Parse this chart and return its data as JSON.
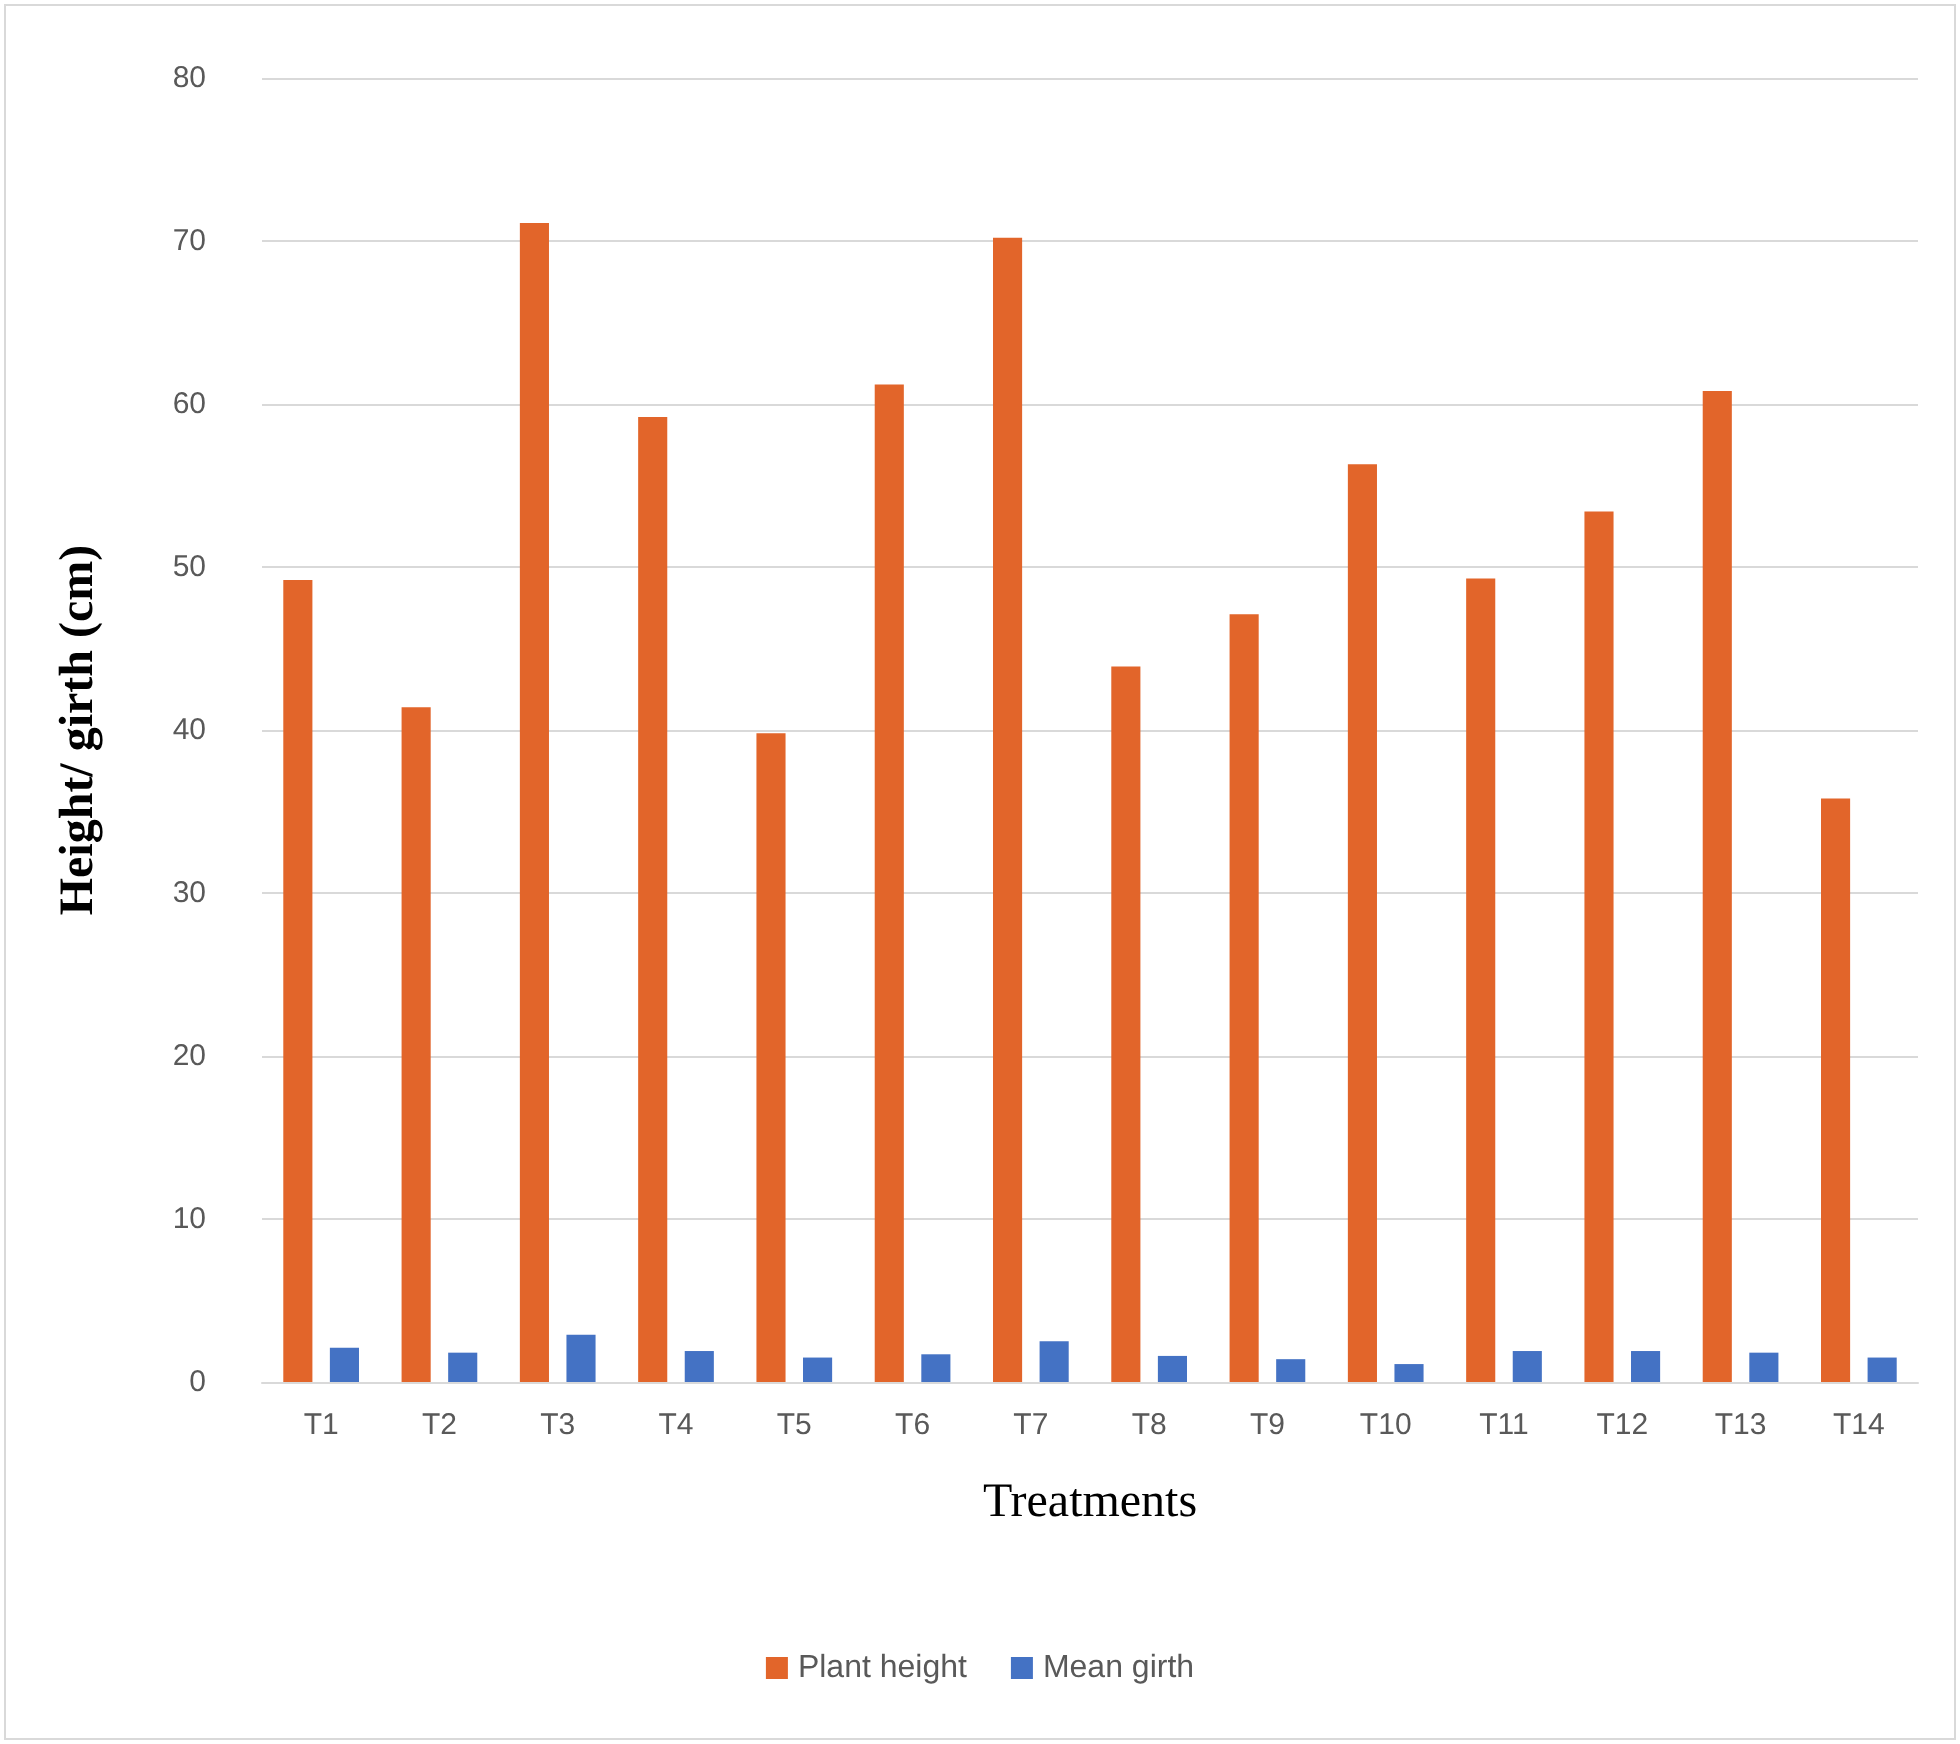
{
  "chart_data": {
    "type": "bar",
    "xlabel": "Treatments",
    "ylabel": "Height/ girth (cm)",
    "categories": [
      "T1",
      "T2",
      "T3",
      "T4",
      "T5",
      "T6",
      "T7",
      "T8",
      "T9",
      "T10",
      "T11",
      "T12",
      "T13",
      "T14"
    ],
    "series": [
      {
        "name": "Plant height",
        "color": "#e2652a",
        "values": [
          49.2,
          41.4,
          71.1,
          59.2,
          39.8,
          61.2,
          70.2,
          43.9,
          47.1,
          56.3,
          49.3,
          53.4,
          60.8,
          35.8
        ]
      },
      {
        "name": "Mean girth",
        "color": "#4472c4",
        "values": [
          2.1,
          1.8,
          2.9,
          1.9,
          1.5,
          1.7,
          2.5,
          1.6,
          1.4,
          1.1,
          1.9,
          1.9,
          1.8,
          1.5
        ]
      }
    ],
    "ylim": [
      0,
      80
    ],
    "yticks": [
      0,
      10,
      20,
      30,
      40,
      50,
      60,
      70,
      80
    ],
    "grid": "y",
    "legend": "bottom"
  }
}
